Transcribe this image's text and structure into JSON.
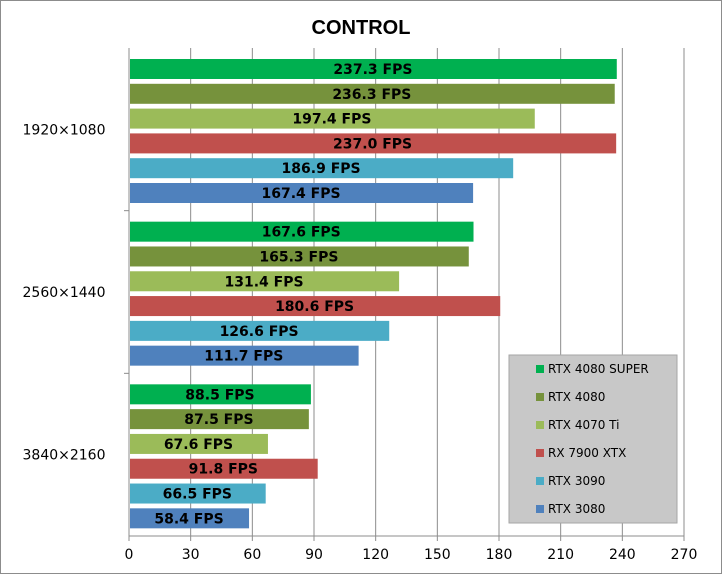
{
  "chart_data": {
    "type": "bar",
    "orientation": "horizontal",
    "title": "CONTROL",
    "xlabel": "",
    "ylabel": "",
    "xlim": [
      0,
      270
    ],
    "x_ticks": [
      0,
      30,
      60,
      90,
      120,
      150,
      180,
      210,
      240,
      270
    ],
    "grid": true,
    "legend_position": "bottom-right",
    "categories": [
      "1920×1080",
      "2560×1440",
      "3840×2160"
    ],
    "value_label_suffix": " FPS",
    "series": [
      {
        "name": "RTX 4080 SUPER",
        "color": "#00b050",
        "values": [
          237.3,
          167.6,
          88.5
        ]
      },
      {
        "name": "RTX 4080",
        "color": "#76923c",
        "values": [
          236.3,
          165.3,
          87.5
        ]
      },
      {
        "name": "RTX 4070 Ti",
        "color": "#9bbb59",
        "values": [
          197.4,
          131.4,
          67.6
        ]
      },
      {
        "name": "RX 7900 XTX",
        "color": "#c0504d",
        "values": [
          237.0,
          180.6,
          91.8
        ]
      },
      {
        "name": "RTX 3090",
        "color": "#4bacc6",
        "values": [
          186.9,
          126.6,
          66.5
        ]
      },
      {
        "name": "RTX 3080",
        "color": "#4f81bd",
        "values": [
          167.4,
          111.7,
          58.4
        ]
      }
    ]
  }
}
